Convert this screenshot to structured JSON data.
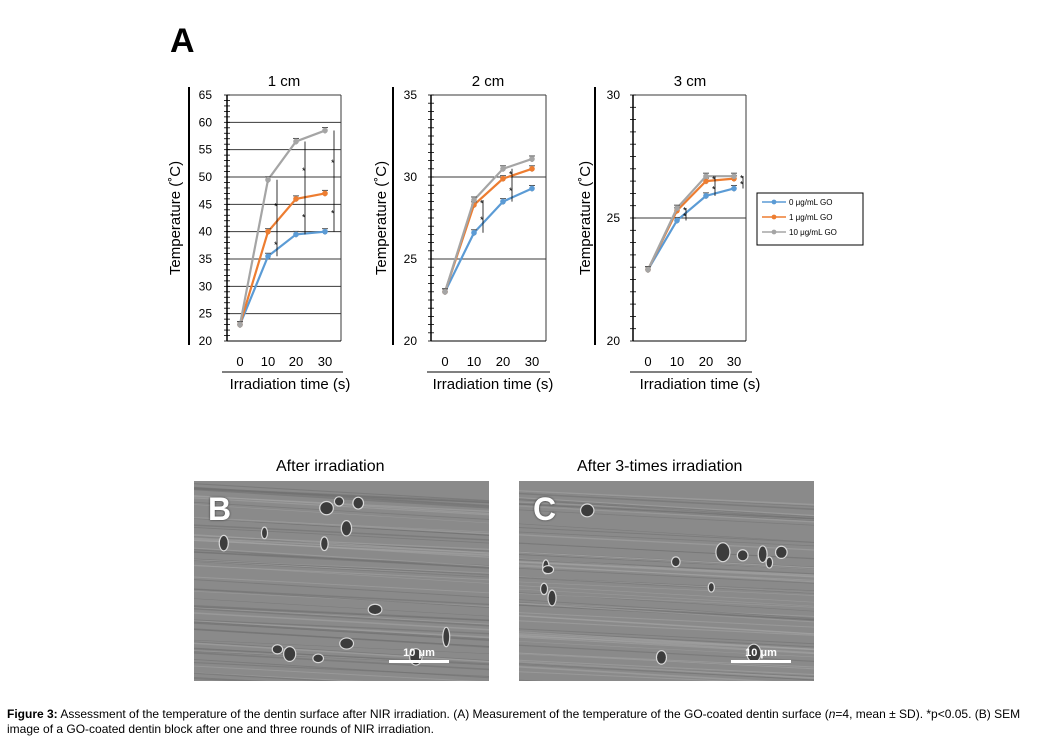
{
  "panel_label_A": "A",
  "chart_data": [
    {
      "type": "line",
      "title": "1 cm",
      "xlabel": "Irradiation time (s)",
      "ylabel": "Temperature (˚C)",
      "x": [
        0,
        10,
        20,
        30
      ],
      "ylim": [
        20,
        65
      ],
      "yticks": [
        20,
        25,
        30,
        35,
        40,
        45,
        50,
        55,
        60,
        65
      ],
      "grid": true,
      "series": [
        {
          "name": "0 μg/mL GO",
          "values": [
            23.0,
            35.5,
            39.5,
            40.0
          ],
          "color": "#5b9bd5"
        },
        {
          "name": "1 μg/mL GO",
          "values": [
            23.0,
            40.0,
            46.0,
            47.0
          ],
          "color": "#ed7d31"
        },
        {
          "name": "10 μg/mL GO",
          "values": [
            23.0,
            49.5,
            56.5,
            58.5
          ],
          "color": "#a5a5a5"
        }
      ],
      "annotations": [
        "*",
        "*",
        "*",
        "*",
        "*",
        "*",
        "*"
      ]
    },
    {
      "type": "line",
      "title": "2 cm",
      "xlabel": "Irradiation time (s)",
      "ylabel": "Temperature (˚C)",
      "x": [
        0,
        10,
        20,
        30
      ],
      "ylim": [
        20,
        35
      ],
      "yticks": [
        20,
        25,
        30,
        35
      ],
      "grid": true,
      "series": [
        {
          "name": "0 μg/mL GO",
          "values": [
            23.0,
            26.6,
            28.5,
            29.3
          ],
          "color": "#5b9bd5"
        },
        {
          "name": "1 μg/mL GO",
          "values": [
            23.0,
            28.3,
            29.9,
            30.5
          ],
          "color": "#ed7d31"
        },
        {
          "name": "10 μg/mL GO",
          "values": [
            23.0,
            28.6,
            30.5,
            31.1
          ],
          "color": "#a5a5a5"
        }
      ],
      "annotations": [
        "*",
        "*",
        "*",
        "*"
      ]
    },
    {
      "type": "line",
      "title": "3 cm",
      "xlabel": "Irradiation time (s)",
      "ylabel": "Temperature (˚C)",
      "x": [
        0,
        10,
        20,
        30
      ],
      "ylim": [
        20,
        30
      ],
      "yticks": [
        20,
        25,
        30
      ],
      "grid": true,
      "legend": "right",
      "series": [
        {
          "name": "0 μg/mL GO",
          "values": [
            22.9,
            24.9,
            25.9,
            26.2
          ],
          "color": "#5b9bd5"
        },
        {
          "name": "1 μg/mL GO",
          "values": [
            22.9,
            25.3,
            26.5,
            26.6
          ],
          "color": "#ed7d31"
        },
        {
          "name": "10 μg/mL GO",
          "values": [
            22.9,
            25.4,
            26.7,
            26.7
          ],
          "color": "#a5a5a5"
        }
      ],
      "annotations": [
        "*",
        "*",
        "*",
        "*",
        "*",
        "*"
      ]
    }
  ],
  "sem_panels": [
    {
      "letter": "B",
      "title": "After irradiation",
      "scale": "10 μm"
    },
    {
      "letter": "C",
      "title": "After 3-times irradiation",
      "scale": "10 μm"
    }
  ],
  "caption": {
    "label": "Figure 3:",
    "text_before_n": " Assessment of the temperature of the dentin surface after NIR irradiation. (A) Measurement of the temperature of the GO-coated dentin surface (",
    "n": "n",
    "text_after_n": "=4, mean ± SD). *p<0.05. (B) SEM image of a GO-coated dentin block after one and three rounds of NIR irradiation."
  }
}
